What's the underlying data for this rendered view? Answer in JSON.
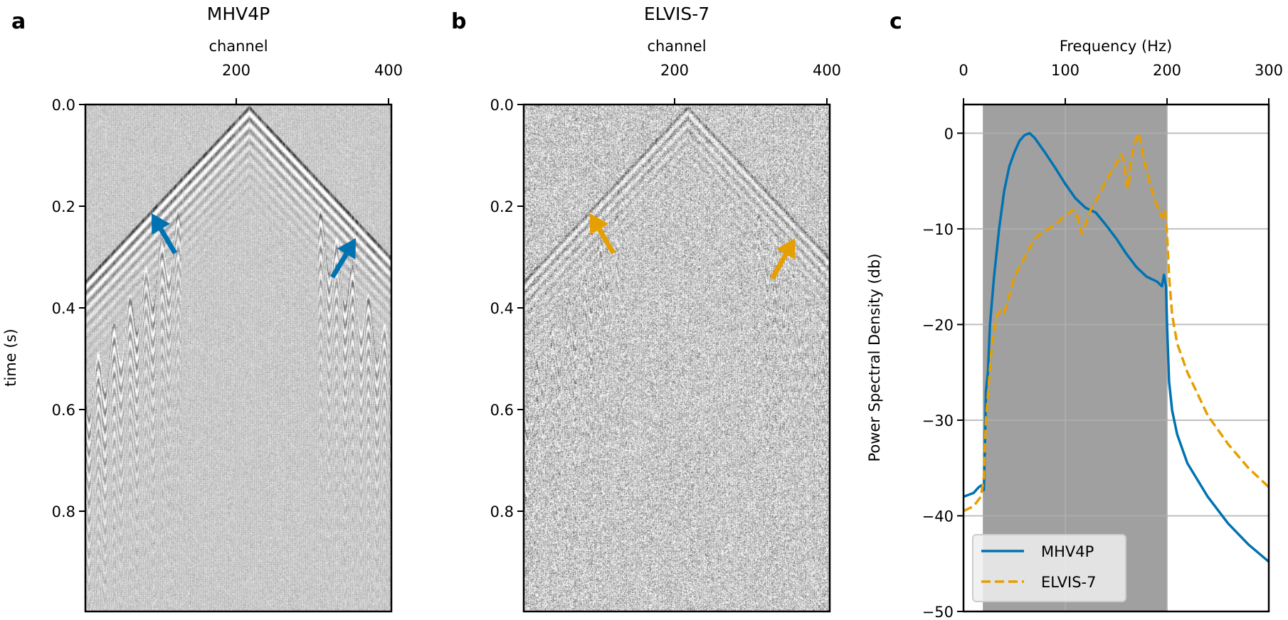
{
  "chart_data": [
    {
      "type": "heatmap",
      "panel_letter": "a",
      "title": "MHV4P",
      "xlabel": "channel",
      "ylabel": "time (s)",
      "xlim": [
        0,
        402
      ],
      "ylim": [
        1.0,
        0.0
      ],
      "xticks": [
        200,
        400
      ],
      "xtick_labels": [
        "200",
        "400"
      ],
      "yticks": [
        0.0,
        0.2,
        0.4,
        0.6,
        0.8
      ],
      "ytick_labels": [
        "0.0",
        "0.2",
        "0.4",
        "0.6",
        "0.8"
      ],
      "colormap": "gray",
      "arrow_color": "#0072B2"
    },
    {
      "type": "heatmap",
      "panel_letter": "b",
      "title": "ELVIS-7",
      "xlabel": "channel",
      "xlim": [
        0,
        404
      ],
      "ylim": [
        1.0,
        0.0
      ],
      "xticks": [
        200,
        400
      ],
      "xtick_labels": [
        "200",
        "400"
      ],
      "yticks": [
        0.0,
        0.2,
        0.4,
        0.6,
        0.8
      ],
      "ytick_labels": [
        "0.0",
        "0.2",
        "0.4",
        "0.6",
        "0.8"
      ],
      "colormap": "gray",
      "arrow_color": "#E69F00"
    },
    {
      "type": "line",
      "panel_letter": "c",
      "xlabel": "Frequency (Hz)",
      "ylabel": "Power Spectral Density (db)",
      "xlim": [
        0,
        300
      ],
      "ylim": [
        -50,
        3
      ],
      "xticks": [
        0,
        100,
        200,
        300
      ],
      "xtick_labels": [
        "0",
        "100",
        "200",
        "300"
      ],
      "yticks": [
        0,
        -10,
        -20,
        -30,
        -40,
        -50
      ],
      "ytick_labels": [
        "0",
        "−10",
        "−20",
        "−30",
        "−40",
        "−50"
      ],
      "grid": true,
      "shaded_band_hz": [
        19,
        200
      ],
      "shaded_color": "#a0a0a0",
      "legend_position": "bottom-left",
      "series": [
        {
          "name": "MHV4P",
          "color": "#0072B2",
          "style": "solid",
          "x": [
            0,
            10,
            15,
            18,
            20,
            21,
            22,
            24,
            26,
            30,
            35,
            40,
            45,
            50,
            55,
            60,
            65,
            70,
            80,
            90,
            100,
            110,
            120,
            130,
            140,
            150,
            160,
            170,
            180,
            190,
            195,
            197,
            199,
            200,
            202,
            205,
            210,
            220,
            240,
            260,
            280,
            300
          ],
          "y": [
            -38,
            -37.6,
            -37,
            -36.8,
            -37.3,
            -33,
            -27,
            -25,
            -20,
            -15,
            -10,
            -6,
            -3.5,
            -2,
            -0.8,
            -0.2,
            0,
            -0.5,
            -2,
            -3.6,
            -5.3,
            -6.8,
            -7.8,
            -8.3,
            -9.6,
            -11,
            -12.6,
            -14,
            -15,
            -15.5,
            -16,
            -14.8,
            -16,
            -20,
            -26,
            -29,
            -31.5,
            -34.5,
            -38,
            -40.8,
            -43,
            -44.8
          ]
        },
        {
          "name": "ELVIS-7",
          "color": "#E69F00",
          "style": "dashed",
          "x": [
            0,
            10,
            17,
            20,
            22,
            25,
            28,
            33,
            37,
            40,
            45,
            50,
            60,
            70,
            80,
            90,
            100,
            108,
            112,
            116,
            120,
            125,
            133,
            140,
            150,
            155,
            158,
            160,
            162,
            164,
            167,
            170,
            172,
            175,
            180,
            188,
            195,
            198,
            200,
            202,
            205,
            210,
            220,
            240,
            260,
            280,
            300
          ],
          "y": [
            -39.5,
            -39,
            -38,
            -36,
            -30,
            -26,
            -22,
            -19,
            -18.5,
            -18.8,
            -17,
            -15,
            -13,
            -11,
            -10.2,
            -9.6,
            -8.6,
            -8,
            -8.7,
            -10.5,
            -9.5,
            -8,
            -6.5,
            -5,
            -3.2,
            -2.2,
            -3,
            -5.3,
            -5.8,
            -3.5,
            -1.5,
            -0.5,
            0,
            -1.5,
            -4,
            -7,
            -8.8,
            -8,
            -10.5,
            -15,
            -19,
            -22,
            -25,
            -29.5,
            -32.5,
            -35,
            -37
          ]
        }
      ]
    }
  ]
}
